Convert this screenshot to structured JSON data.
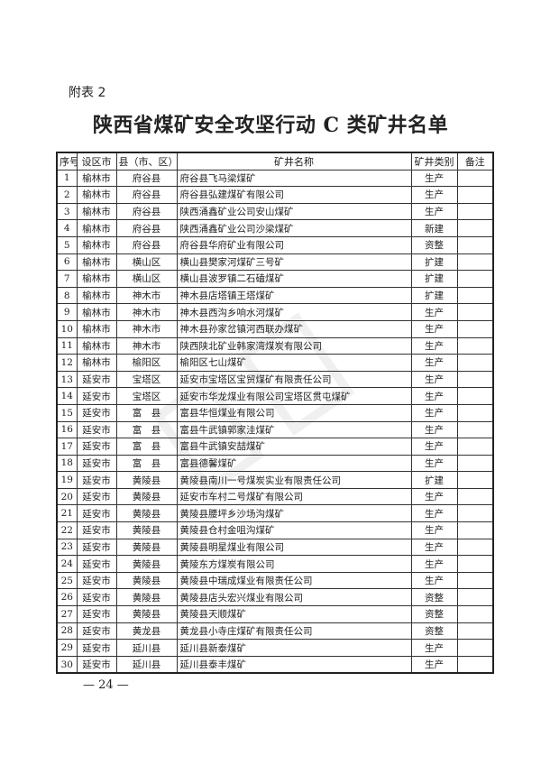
{
  "attachment_label": "附表 2",
  "title": "陕西省煤矿安全攻坚行动 C 类矿井名单",
  "table": {
    "headers": [
      "序号",
      "设区市",
      "县（市、区）",
      "矿井名称",
      "矿井类别",
      "备注"
    ],
    "rows": [
      [
        "1",
        "榆林市",
        "府谷县",
        "府谷县飞马梁煤矿",
        "生产",
        ""
      ],
      [
        "2",
        "榆林市",
        "府谷县",
        "府谷县弘建煤矿有限公司",
        "生产",
        ""
      ],
      [
        "3",
        "榆林市",
        "府谷县",
        "陕西涌鑫矿业公司安山煤矿",
        "生产",
        ""
      ],
      [
        "4",
        "榆林市",
        "府谷县",
        "陕西涌鑫矿业公司沙梁煤矿",
        "新建",
        ""
      ],
      [
        "5",
        "榆林市",
        "府谷县",
        "府谷县华府矿业有限公司",
        "资整",
        ""
      ],
      [
        "6",
        "榆林市",
        "横山区",
        "横山县樊家河煤矿三号矿",
        "扩建",
        ""
      ],
      [
        "7",
        "榆林市",
        "横山区",
        "横山县波罗镇二石磕煤矿",
        "扩建",
        ""
      ],
      [
        "8",
        "榆林市",
        "神木市",
        "神木县店塔镇王塔煤矿",
        "扩建",
        ""
      ],
      [
        "9",
        "榆林市",
        "神木市",
        "神木县西沟乡响水河煤矿",
        "生产",
        ""
      ],
      [
        "10",
        "榆林市",
        "神木市",
        "神木县孙家岔镇河西联办煤矿",
        "生产",
        ""
      ],
      [
        "11",
        "榆林市",
        "神木市",
        "陕西陕北矿业韩家湾煤炭有限公司",
        "生产",
        ""
      ],
      [
        "12",
        "榆林市",
        "榆阳区",
        "榆阳区七山煤矿",
        "生产",
        ""
      ],
      [
        "13",
        "延安市",
        "宝塔区",
        "延安市宝塔区宝贸煤矿有限责任公司",
        "生产",
        ""
      ],
      [
        "14",
        "延安市",
        "宝塔区",
        "延安市华龙煤业有限公司宝塔区贯屯煤矿",
        "生产",
        ""
      ],
      [
        "15",
        "延安市",
        "富　县",
        "富县华恒煤业有限公司",
        "生产",
        ""
      ],
      [
        "16",
        "延安市",
        "富　县",
        "富县牛武镇郭家洼煤矿",
        "生产",
        ""
      ],
      [
        "17",
        "延安市",
        "富　县",
        "富县牛武镇安喆煤矿",
        "生产",
        ""
      ],
      [
        "18",
        "延安市",
        "富　县",
        "富县德馨煤矿",
        "生产",
        ""
      ],
      [
        "19",
        "延安市",
        "黄陵县",
        "黄陵县南川一号煤炭实业有限责任公司",
        "扩建",
        ""
      ],
      [
        "20",
        "延安市",
        "黄陵县",
        "延安市车村二号煤矿有限公司",
        "生产",
        ""
      ],
      [
        "21",
        "延安市",
        "黄陵县",
        "黄陵县腰坪乡沙场沟煤矿",
        "生产",
        ""
      ],
      [
        "22",
        "延安市",
        "黄陵县",
        "黄陵县仓村金咀沟煤矿",
        "生产",
        ""
      ],
      [
        "23",
        "延安市",
        "黄陵县",
        "黄陵县明星煤业有限公司",
        "生产",
        ""
      ],
      [
        "24",
        "延安市",
        "黄陵县",
        "黄陵东方煤炭有限公司",
        "生产",
        ""
      ],
      [
        "25",
        "延安市",
        "黄陵县",
        "黄陵县中瑞成煤业有限责任公司",
        "生产",
        ""
      ],
      [
        "26",
        "延安市",
        "黄陵县",
        "黄陵县店头宏兴煤业有限公司",
        "资整",
        ""
      ],
      [
        "27",
        "延安市",
        "黄陵县",
        "黄陵县天顺煤矿",
        "资整",
        ""
      ],
      [
        "28",
        "延安市",
        "黄龙县",
        "黄龙县小寺庄煤矿有限责任公司",
        "资整",
        ""
      ],
      [
        "29",
        "延安市",
        "延川县",
        "延川县新泰煤矿",
        "生产",
        ""
      ],
      [
        "30",
        "延安市",
        "延川县",
        "延川县泰丰煤矿",
        "生产",
        ""
      ]
    ]
  },
  "page_number": "— 24 —"
}
